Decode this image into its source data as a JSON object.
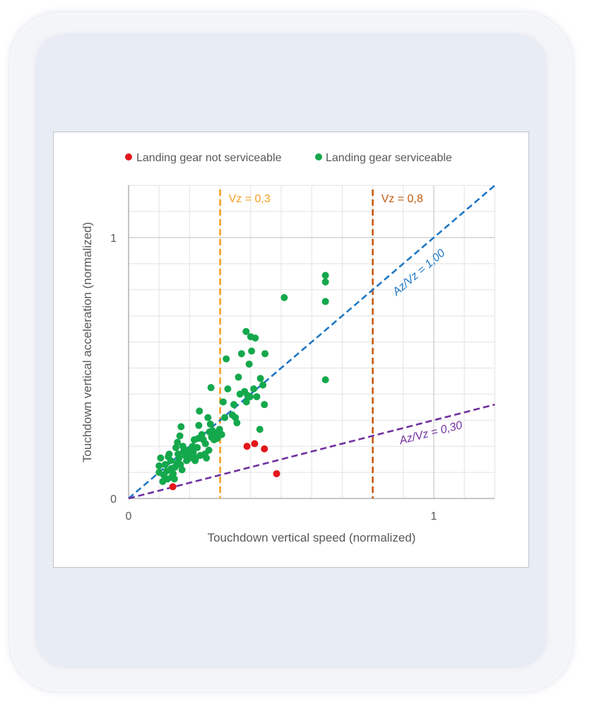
{
  "chart_data": {
    "type": "scatter",
    "xlabel": "Touchdown vertical speed (normalized)",
    "ylabel": "Touchdown vertical acceleration (normalized)",
    "xlim": [
      0,
      1.2
    ],
    "ylim": [
      0,
      1.2
    ],
    "x_ticks": [
      {
        "value": 0,
        "label": "0"
      },
      {
        "value": 1,
        "label": "1"
      }
    ],
    "y_ticks": [
      {
        "value": 0,
        "label": "0"
      },
      {
        "value": 1,
        "label": "1"
      }
    ],
    "grid": true,
    "legend_position": "top",
    "series": [
      {
        "name": "Landing gear not serviceable",
        "color": "#e3161b",
        "points": [
          [
            0.145,
            0.045
          ],
          [
            0.388,
            0.2
          ],
          [
            0.413,
            0.21
          ],
          [
            0.445,
            0.19
          ],
          [
            0.485,
            0.095
          ]
        ]
      },
      {
        "name": "Landing gear serviceable",
        "color": "#14a84c",
        "points": [
          [
            0.1,
            0.1
          ],
          [
            0.1,
            0.125
          ],
          [
            0.105,
            0.155
          ],
          [
            0.112,
            0.065
          ],
          [
            0.115,
            0.09
          ],
          [
            0.12,
            0.13
          ],
          [
            0.125,
            0.105
          ],
          [
            0.128,
            0.075
          ],
          [
            0.13,
            0.16
          ],
          [
            0.133,
            0.17
          ],
          [
            0.138,
            0.145
          ],
          [
            0.14,
            0.115
          ],
          [
            0.143,
            0.085
          ],
          [
            0.146,
            0.095
          ],
          [
            0.15,
            0.075
          ],
          [
            0.152,
            0.12
          ],
          [
            0.155,
            0.195
          ],
          [
            0.158,
            0.135
          ],
          [
            0.16,
            0.215
          ],
          [
            0.162,
            0.17
          ],
          [
            0.165,
            0.155
          ],
          [
            0.168,
            0.24
          ],
          [
            0.17,
            0.13
          ],
          [
            0.172,
            0.275
          ],
          [
            0.175,
            0.11
          ],
          [
            0.178,
            0.2
          ],
          [
            0.18,
            0.18
          ],
          [
            0.185,
            0.165
          ],
          [
            0.19,
            0.145
          ],
          [
            0.195,
            0.185
          ],
          [
            0.2,
            0.155
          ],
          [
            0.205,
            0.17
          ],
          [
            0.21,
            0.2
          ],
          [
            0.212,
            0.175
          ],
          [
            0.215,
            0.225
          ],
          [
            0.218,
            0.145
          ],
          [
            0.22,
            0.155
          ],
          [
            0.225,
            0.195
          ],
          [
            0.228,
            0.23
          ],
          [
            0.23,
            0.28
          ],
          [
            0.232,
            0.335
          ],
          [
            0.235,
            0.165
          ],
          [
            0.24,
            0.245
          ],
          [
            0.245,
            0.225
          ],
          [
            0.25,
            0.17
          ],
          [
            0.252,
            0.21
          ],
          [
            0.255,
            0.155
          ],
          [
            0.26,
            0.31
          ],
          [
            0.263,
            0.185
          ],
          [
            0.265,
            0.255
          ],
          [
            0.268,
            0.285
          ],
          [
            0.27,
            0.425
          ],
          [
            0.272,
            0.235
          ],
          [
            0.275,
            0.26
          ],
          [
            0.28,
            0.225
          ],
          [
            0.285,
            0.25
          ],
          [
            0.29,
            0.23
          ],
          [
            0.295,
            0.24
          ],
          [
            0.298,
            0.265
          ],
          [
            0.3,
            0.25
          ],
          [
            0.305,
            0.245
          ],
          [
            0.31,
            0.37
          ],
          [
            0.315,
            0.31
          ],
          [
            0.32,
            0.535
          ],
          [
            0.325,
            0.42
          ],
          [
            0.34,
            0.32
          ],
          [
            0.345,
            0.36
          ],
          [
            0.35,
            0.31
          ],
          [
            0.355,
            0.29
          ],
          [
            0.36,
            0.465
          ],
          [
            0.365,
            0.4
          ],
          [
            0.37,
            0.555
          ],
          [
            0.38,
            0.41
          ],
          [
            0.385,
            0.64
          ],
          [
            0.386,
            0.37
          ],
          [
            0.39,
            0.395
          ],
          [
            0.395,
            0.515
          ],
          [
            0.398,
            0.39
          ],
          [
            0.4,
            0.62
          ],
          [
            0.403,
            0.565
          ],
          [
            0.41,
            0.42
          ],
          [
            0.415,
            0.615
          ],
          [
            0.42,
            0.39
          ],
          [
            0.43,
            0.265
          ],
          [
            0.432,
            0.46
          ],
          [
            0.44,
            0.435
          ],
          [
            0.445,
            0.36
          ],
          [
            0.447,
            0.555
          ],
          [
            0.51,
            0.77
          ],
          [
            0.645,
            0.855
          ],
          [
            0.645,
            0.83
          ],
          [
            0.645,
            0.755
          ],
          [
            0.645,
            0.455
          ]
        ]
      }
    ],
    "vertical_lines": [
      {
        "x": 0.3,
        "label": "Vz = 0,3",
        "color": "#f5a01e"
      },
      {
        "x": 0.8,
        "label": "Vz = 0,8",
        "color": "#c55a11"
      }
    ],
    "ratio_lines": [
      {
        "slope": 1.0,
        "label": "Az/Vz = 1,00",
        "color": "#1f77c4"
      },
      {
        "slope": 0.3,
        "label": "Az/Vz = 0,30",
        "color": "#7030a0"
      }
    ]
  }
}
